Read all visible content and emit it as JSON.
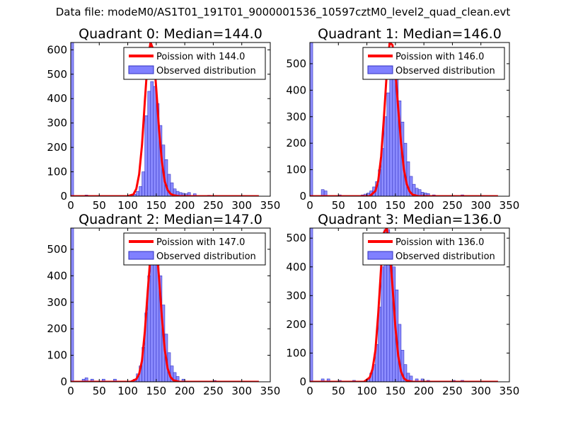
{
  "figure_title": "Data file: modeM0/AS1T01_191T01_9000001536_10597cztM0_level2_quad_clean.evt",
  "colors": {
    "hist_fill": "#8080ff",
    "hist_edge": "#3030c0",
    "curve": "#ff0000",
    "axes": "#000000"
  },
  "chart_data": [
    {
      "type": "bar",
      "title": "Quadrant 0: Median=144.0",
      "xlim": [
        0,
        350
      ],
      "ylim": [
        0,
        630
      ],
      "xticks": [
        0,
        50,
        100,
        150,
        200,
        250,
        300,
        350
      ],
      "yticks": [
        0,
        100,
        200,
        300,
        400,
        500,
        600
      ],
      "legend": {
        "position": "top-right",
        "entries": [
          "Poission with 144.0",
          "Observed distribution"
        ]
      },
      "bin_width": 5,
      "histogram": {
        "bins_start": [
          0,
          25,
          75,
          100,
          105,
          110,
          115,
          120,
          125,
          130,
          135,
          140,
          145,
          150,
          155,
          160,
          165,
          170,
          175,
          180,
          185,
          190,
          195,
          200,
          205,
          215,
          240,
          250
        ],
        "counts": [
          630,
          5,
          3,
          5,
          5,
          8,
          20,
          40,
          100,
          330,
          430,
          470,
          450,
          380,
          290,
          210,
          150,
          90,
          55,
          30,
          20,
          15,
          12,
          10,
          15,
          10,
          4,
          3
        ]
      },
      "poisson": {
        "mean": 144.0,
        "x": [
          0,
          100,
          110,
          115,
          120,
          125,
          130,
          135,
          140,
          145,
          150,
          155,
          160,
          165,
          170,
          175,
          180,
          190,
          200,
          330
        ],
        "y": [
          0,
          0,
          8,
          30,
          90,
          210,
          390,
          560,
          650,
          600,
          440,
          270,
          140,
          60,
          25,
          10,
          4,
          0,
          0,
          0
        ]
      }
    },
    {
      "type": "bar",
      "title": "Quadrant 1: Median=146.0",
      "xlim": [
        0,
        350
      ],
      "ylim": [
        0,
        580
      ],
      "xticks": [
        0,
        50,
        100,
        150,
        200,
        250,
        300,
        350
      ],
      "yticks": [
        0,
        100,
        200,
        300,
        400,
        500
      ],
      "legend": {
        "position": "top-right",
        "entries": [
          "Poission with 146.0",
          "Observed distribution"
        ]
      },
      "bin_width": 5,
      "histogram": {
        "bins_start": [
          0,
          20,
          25,
          50,
          75,
          90,
          95,
          100,
          105,
          110,
          115,
          120,
          125,
          130,
          135,
          140,
          145,
          150,
          155,
          160,
          165,
          170,
          175,
          180,
          185,
          190,
          195,
          200,
          205,
          215,
          265
        ],
        "counts": [
          580,
          25,
          20,
          5,
          3,
          5,
          8,
          12,
          20,
          35,
          55,
          100,
          180,
          300,
          390,
          480,
          500,
          440,
          360,
          280,
          200,
          130,
          75,
          45,
          30,
          25,
          15,
          12,
          10,
          5,
          5
        ]
      },
      "poisson": {
        "mean": 146.0,
        "x": [
          0,
          105,
          115,
          120,
          125,
          130,
          135,
          140,
          145,
          150,
          155,
          160,
          165,
          170,
          175,
          180,
          190,
          200,
          330
        ],
        "y": [
          0,
          0,
          20,
          60,
          150,
          300,
          470,
          585,
          570,
          470,
          330,
          200,
          100,
          45,
          18,
          6,
          0,
          0,
          0
        ]
      }
    },
    {
      "type": "bar",
      "title": "Quadrant 2: Median=147.0",
      "xlim": [
        0,
        350
      ],
      "ylim": [
        0,
        580
      ],
      "xticks": [
        0,
        50,
        100,
        150,
        200,
        250,
        300,
        350
      ],
      "yticks": [
        0,
        100,
        200,
        300,
        400,
        500
      ],
      "legend": {
        "position": "top-right",
        "entries": [
          "Poission with 147.0",
          "Observed distribution"
        ]
      },
      "bin_width": 5,
      "histogram": {
        "bins_start": [
          0,
          20,
          25,
          35,
          55,
          75,
          110,
          115,
          120,
          125,
          130,
          135,
          140,
          145,
          150,
          155,
          160,
          165,
          170,
          175,
          180,
          185,
          195,
          250
        ],
        "counts": [
          580,
          10,
          15,
          10,
          10,
          10,
          10,
          30,
          60,
          130,
          260,
          400,
          540,
          560,
          500,
          400,
          290,
          180,
          110,
          60,
          35,
          20,
          10,
          5
        ]
      },
      "poisson": {
        "mean": 147.0,
        "x": [
          0,
          105,
          115,
          120,
          125,
          130,
          135,
          140,
          145,
          150,
          155,
          160,
          165,
          170,
          175,
          180,
          190,
          200,
          330
        ],
        "y": [
          0,
          0,
          10,
          30,
          80,
          190,
          340,
          480,
          550,
          520,
          390,
          240,
          120,
          50,
          18,
          6,
          0,
          0,
          0
        ]
      }
    },
    {
      "type": "bar",
      "title": "Quadrant 3: Median=136.0",
      "xlim": [
        0,
        350
      ],
      "ylim": [
        0,
        535
      ],
      "xticks": [
        0,
        50,
        100,
        150,
        200,
        250,
        300,
        350
      ],
      "yticks": [
        0,
        100,
        200,
        300,
        400,
        500
      ],
      "legend": {
        "position": "top-right",
        "entries": [
          "Poission with 136.0",
          "Observed distribution"
        ]
      },
      "bin_width": 5,
      "histogram": {
        "bins_start": [
          0,
          20,
          30,
          50,
          75,
          100,
          105,
          110,
          115,
          120,
          125,
          130,
          135,
          140,
          145,
          150,
          155,
          160,
          165,
          170,
          175,
          185,
          195,
          205,
          250,
          265
        ],
        "counts": [
          535,
          10,
          10,
          5,
          5,
          10,
          30,
          60,
          130,
          260,
          400,
          530,
          530,
          500,
          400,
          320,
          200,
          110,
          60,
          30,
          20,
          10,
          10,
          5,
          5,
          5
        ]
      },
      "poisson": {
        "mean": 136.0,
        "x": [
          0,
          95,
          105,
          110,
          115,
          120,
          125,
          130,
          135,
          140,
          145,
          150,
          155,
          160,
          165,
          170,
          180,
          190,
          330
        ],
        "y": [
          0,
          0,
          15,
          45,
          110,
          240,
          400,
          520,
          545,
          460,
          330,
          190,
          90,
          35,
          12,
          4,
          0,
          0,
          0
        ]
      }
    }
  ]
}
